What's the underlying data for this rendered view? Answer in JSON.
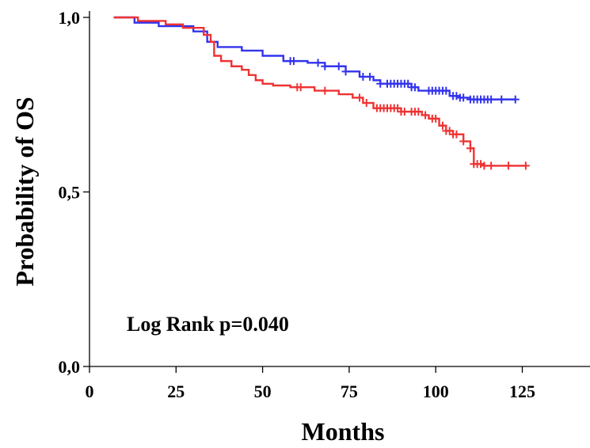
{
  "chart_data": {
    "type": "line",
    "title": "",
    "xlabel": "Months",
    "ylabel": "Probability of OS",
    "xlim": [
      0,
      145
    ],
    "ylim": [
      0,
      1
    ],
    "xticks": [
      0,
      25,
      50,
      75,
      100,
      125
    ],
    "xtick_labels": [
      "0",
      "25",
      "50",
      "75",
      "100",
      "125"
    ],
    "yticks": [
      0,
      0.5,
      1
    ],
    "ytick_labels": [
      "0,0",
      "0,5",
      "1,0"
    ],
    "grid": false,
    "legend": "none",
    "annotation": "Log Rank p=0.040",
    "series": [
      {
        "color": "#3333ee",
        "step": true,
        "x": [
          7,
          13,
          20,
          30,
          34,
          37,
          44,
          50,
          56,
          63,
          68,
          74,
          78,
          82,
          84,
          93,
          95,
          104,
          107,
          110,
          123
        ],
        "y": [
          1.0,
          0.985,
          0.975,
          0.96,
          0.93,
          0.915,
          0.905,
          0.89,
          0.875,
          0.87,
          0.86,
          0.845,
          0.83,
          0.82,
          0.81,
          0.8,
          0.79,
          0.775,
          0.77,
          0.765,
          0.765
        ],
        "censor_x": [
          58,
          59,
          66,
          68,
          72,
          74,
          79,
          81,
          84,
          86,
          87,
          88,
          89,
          90,
          91,
          92,
          93,
          94,
          98,
          99,
          100,
          101,
          102,
          103,
          105,
          106,
          107,
          108,
          110,
          111,
          112,
          113,
          114,
          115,
          116,
          119,
          123
        ]
      },
      {
        "color": "#ee3333",
        "step": true,
        "x": [
          7,
          14,
          22,
          27,
          33,
          35,
          36,
          38,
          41,
          44,
          46,
          48,
          50,
          53,
          58,
          65,
          72,
          76,
          79,
          82,
          90,
          96,
          98,
          101,
          103,
          105,
          108,
          110,
          111,
          114,
          126
        ],
        "y": [
          1.0,
          0.99,
          0.98,
          0.97,
          0.95,
          0.93,
          0.89,
          0.875,
          0.86,
          0.85,
          0.835,
          0.82,
          0.81,
          0.805,
          0.8,
          0.79,
          0.78,
          0.77,
          0.755,
          0.74,
          0.73,
          0.72,
          0.71,
          0.69,
          0.675,
          0.665,
          0.645,
          0.625,
          0.58,
          0.575,
          0.575
        ],
        "censor_x": [
          60,
          61,
          68,
          78,
          80,
          83,
          84,
          85,
          86,
          87,
          88,
          89,
          90,
          91,
          93,
          94,
          95,
          97,
          99,
          100,
          102,
          103,
          104,
          105,
          106,
          108,
          110,
          111,
          112,
          113,
          114,
          116,
          121,
          126
        ]
      }
    ]
  }
}
